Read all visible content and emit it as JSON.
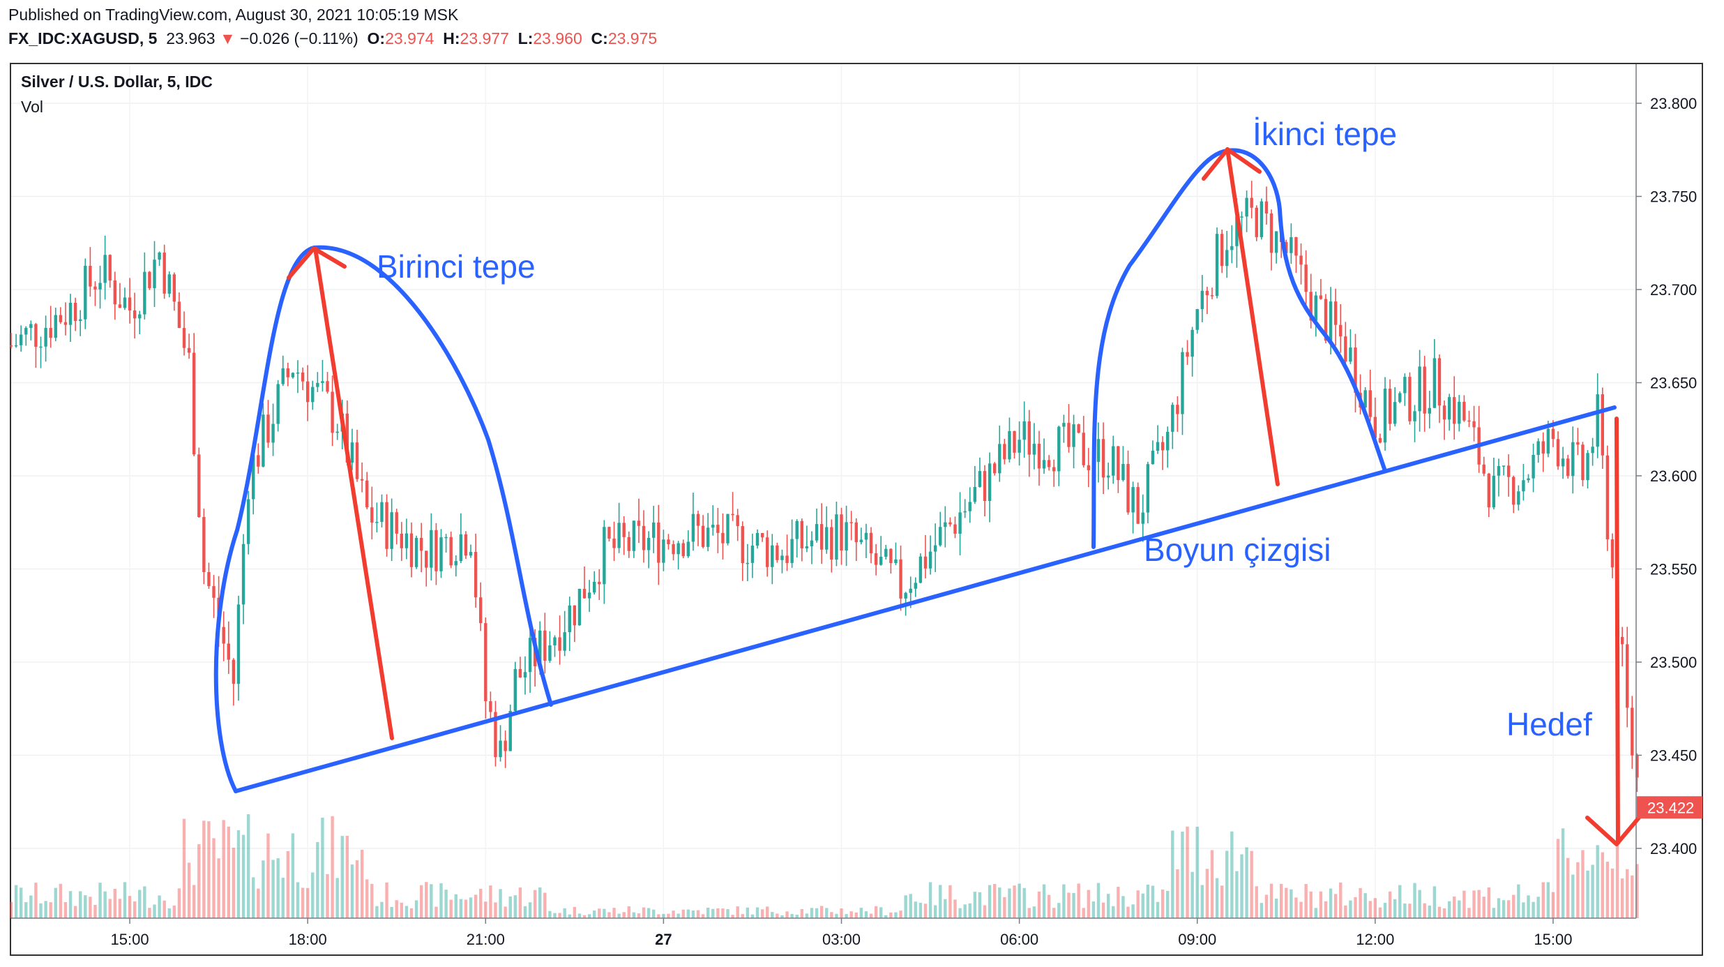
{
  "header": {
    "published": "Published on TradingView.com, August 30, 2021 10:05:19 MSK",
    "symbol": "FX_IDC:XAGUSD, 5",
    "last": "23.963",
    "change": "−0.026 (−0.11%)",
    "o_label": "O:",
    "o_val": "23.974",
    "h_label": "H:",
    "h_val": "23.977",
    "l_label": "L:",
    "l_val": "23.960",
    "c_label": "C:",
    "c_val": "23.975"
  },
  "chart_title": "Silver / U.S. Dollar, 5, IDC",
  "volume_label": "Vol",
  "colors": {
    "up": "#26a69a",
    "down": "#ef5350",
    "drawing_blue": "#2962ff",
    "drawing_red": "#f23c30",
    "text": "#131722"
  },
  "chart_data": {
    "type": "candlestick",
    "title": "Silver / U.S. Dollar, 5, IDC",
    "ylim": [
      23.36,
      23.82
    ],
    "y_ticks": [
      "23.800",
      "23.750",
      "23.700",
      "23.650",
      "23.600",
      "23.550",
      "23.500",
      "23.450",
      "23.400"
    ],
    "x_ticks": [
      "15:00",
      "18:00",
      "21:00",
      "27",
      "03:00",
      "06:00",
      "09:00",
      "12:00",
      "15:00"
    ],
    "last_price_label": "23.422",
    "annotations": {
      "first_peak": "Birinci tepe",
      "second_peak": "İkinci tepe",
      "neckline": "Boyun çizgisi",
      "target": "Hedef"
    },
    "price_path": [
      {
        "t": "13:00",
        "p": 23.67
      },
      {
        "t": "14:00",
        "p": 23.69
      },
      {
        "t": "14:30",
        "p": 23.71
      },
      {
        "t": "15:00",
        "p": 23.69
      },
      {
        "t": "15:30",
        "p": 23.72
      },
      {
        "t": "16:00",
        "p": 23.66
      },
      {
        "t": "16:15",
        "p": 23.55
      },
      {
        "t": "16:45",
        "p": 23.49
      },
      {
        "t": "17:00",
        "p": 23.6
      },
      {
        "t": "17:45",
        "p": 23.66
      },
      {
        "t": "18:30",
        "p": 23.63
      },
      {
        "t": "19:00",
        "p": 23.58
      },
      {
        "t": "20:00",
        "p": 23.56
      },
      {
        "t": "20:45",
        "p": 23.57
      },
      {
        "t": "21:00",
        "p": 23.48
      },
      {
        "t": "21:15",
        "p": 23.45
      },
      {
        "t": "21:30",
        "p": 23.49
      },
      {
        "t": "22:30",
        "p": 23.53
      },
      {
        "t": "23:00",
        "p": 23.56
      },
      {
        "t": "00:30",
        "p": 23.57
      },
      {
        "t": "02:00",
        "p": 23.56
      },
      {
        "t": "03:00",
        "p": 23.57
      },
      {
        "t": "04:00",
        "p": 23.54
      },
      {
        "t": "05:00",
        "p": 23.58
      },
      {
        "t": "06:00",
        "p": 23.62
      },
      {
        "t": "07:30",
        "p": 23.61
      },
      {
        "t": "08:00",
        "p": 23.58
      },
      {
        "t": "08:30",
        "p": 23.62
      },
      {
        "t": "09:00",
        "p": 23.69
      },
      {
        "t": "09:30",
        "p": 23.73
      },
      {
        "t": "10:00",
        "p": 23.74
      },
      {
        "t": "10:30",
        "p": 23.72
      },
      {
        "t": "11:00",
        "p": 23.69
      },
      {
        "t": "11:30",
        "p": 23.67
      },
      {
        "t": "12:00",
        "p": 23.63
      },
      {
        "t": "12:30",
        "p": 23.64
      },
      {
        "t": "13:00",
        "p": 23.65
      },
      {
        "t": "13:30",
        "p": 23.63
      },
      {
        "t": "14:00",
        "p": 23.59
      },
      {
        "t": "14:30",
        "p": 23.6
      },
      {
        "t": "15:00",
        "p": 23.62
      },
      {
        "t": "15:30",
        "p": 23.6
      },
      {
        "t": "15:45",
        "p": 23.63
      },
      {
        "t": "16:00",
        "p": 23.55
      },
      {
        "t": "16:15",
        "p": 23.47
      },
      {
        "t": "16:30",
        "p": 23.42
      }
    ]
  }
}
